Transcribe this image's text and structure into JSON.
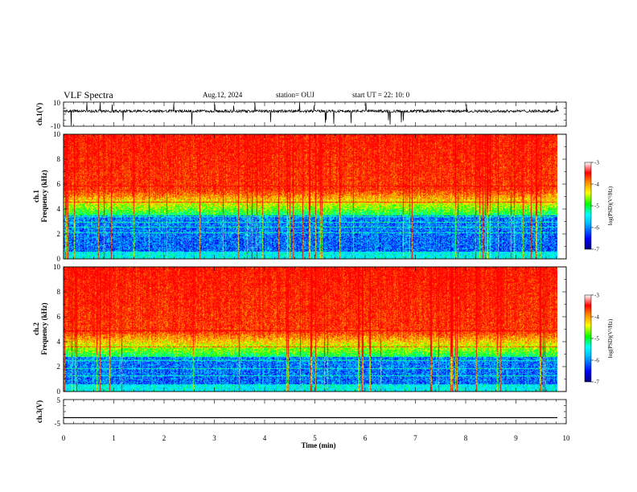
{
  "header": {
    "title": "VLF Spectra",
    "date": "Aug.12, 2024",
    "station": "station= OUJ",
    "start_ut": "start  UT  =   22: 10: 0"
  },
  "colors": {
    "background": "#ffffff",
    "waveform": "#000000",
    "spectrogram_palette": [
      "#000080",
      "#0000ff",
      "#00bfff",
      "#00ffff",
      "#00ff00",
      "#ffff00",
      "#ff8000",
      "#ff0000",
      "#ffffff"
    ]
  },
  "chart_data": [
    {
      "type": "line",
      "panel": "ch1-waveform",
      "ylabel": "ch.1(V)",
      "ylim": [
        -10,
        10
      ],
      "yticks": [
        "10",
        "-10"
      ],
      "xlim": [
        0,
        10
      ],
      "baseline_value": 2.5,
      "spike_range": [
        -10,
        10
      ]
    },
    {
      "type": "heatmap",
      "panel": "ch1-spectrogram",
      "ylabel": "ch.1\nFrequency (kHz)",
      "ylabel_lines": [
        "ch.1",
        "Frequency (kHz)"
      ],
      "ylim": [
        0,
        10
      ],
      "yticks": [
        "0",
        "2",
        "4",
        "6",
        "8",
        "10"
      ],
      "xlim": [
        0,
        9.85
      ],
      "colorbar": {
        "label": "log(PSD)(V²/Hz)",
        "range": [
          -7,
          -3
        ],
        "ticks": [
          "-3",
          "-4",
          "-5",
          "-6",
          "-7"
        ]
      },
      "transition_khz": 4.5
    },
    {
      "type": "heatmap",
      "panel": "ch2-spectrogram",
      "ylabel": "ch.2\nFrequency (kHz)",
      "ylabel_lines": [
        "ch.2",
        "Frequency (kHz)"
      ],
      "ylim": [
        0,
        10
      ],
      "yticks": [
        "0",
        "2",
        "4",
        "6",
        "8",
        "10"
      ],
      "xlim": [
        0,
        9.85
      ],
      "colorbar": {
        "label": "log(PSD)(V²/Hz)",
        "range": [
          -7,
          -3
        ],
        "ticks": [
          "-3",
          "-4",
          "-5",
          "-6",
          "-7"
        ]
      },
      "transition_khz": 3.8
    },
    {
      "type": "line",
      "panel": "ch3-waveform",
      "ylabel": "ch.3(V)",
      "ylim": [
        -5,
        5
      ],
      "yticks": [
        "5",
        "-5"
      ],
      "xlim": [
        0,
        10
      ],
      "constant_value": -2.5,
      "xlabel": "Time (min)",
      "xticks": [
        "0",
        "1",
        "2",
        "3",
        "4",
        "5",
        "6",
        "7",
        "8",
        "9",
        "10"
      ]
    }
  ]
}
